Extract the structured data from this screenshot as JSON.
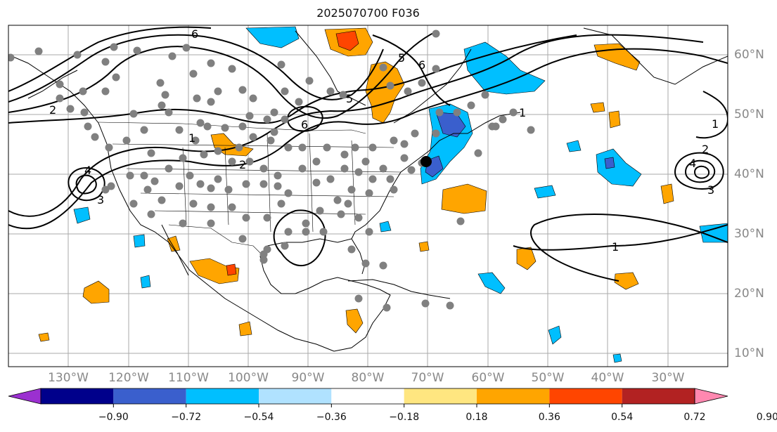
{
  "title": "2025070700 F036",
  "longitude_labels": [
    "130°W",
    "120°W",
    "110°W",
    "100°W",
    "90°W",
    "80°W",
    "70°W",
    "60°W",
    "50°W",
    "40°W",
    "30°W"
  ],
  "latitude_labels": [
    "60°N",
    "50°N",
    "40°N",
    "30°N",
    "20°N",
    "10°N"
  ],
  "colorbar": {
    "tick_labels": [
      "−0.90",
      "−0.72",
      "−0.54",
      "−0.36",
      "−0.18",
      "0.18",
      "0.36",
      "0.54",
      "0.72",
      "0.90"
    ],
    "colors": [
      "#9b30d0",
      "#00008b",
      "#3a5fcd",
      "#00bfff",
      "#b0e2ff",
      "#ffffff",
      "#ffe680",
      "#ffa500",
      "#ff4500",
      "#b22222",
      "#ff88b0"
    ]
  },
  "contour_labels": [
    "6",
    "6",
    "6",
    "5",
    "5",
    "4",
    "4",
    "3",
    "3",
    "2",
    "2",
    "2",
    "1",
    "1",
    "1",
    "1"
  ],
  "colors": {
    "contour": "#000000",
    "station_dot": "#808080",
    "grid": "#aaaaaa"
  }
}
